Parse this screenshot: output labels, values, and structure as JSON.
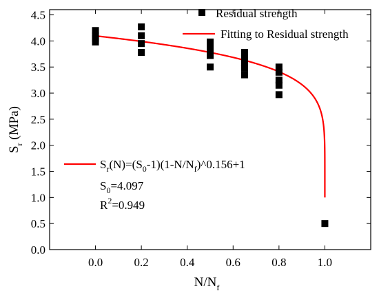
{
  "chart_data": {
    "type": "scatter",
    "xlabel": {
      "main": "N/N",
      "sub": "f"
    },
    "ylabel": {
      "main": "S",
      "sub": "r",
      "rest": " (MPa)"
    },
    "xlim": [
      -0.2,
      1.2
    ],
    "ylim": [
      0.0,
      4.6
    ],
    "xticks": [
      "0.0",
      "0.2",
      "0.4",
      "0.6",
      "0.8",
      "1.0"
    ],
    "yticks": [
      "0.0",
      "0.5",
      "1.0",
      "1.5",
      "2.0",
      "2.5",
      "3.0",
      "3.5",
      "4.0",
      "4.5"
    ],
    "grid": false,
    "series": [
      {
        "name": "Residual strength",
        "kind": "scatter",
        "color": "#000000",
        "marker": "square",
        "points": [
          [
            0.0,
            4.2
          ],
          [
            0.0,
            4.1
          ],
          [
            0.0,
            4.05
          ],
          [
            0.0,
            3.98
          ],
          [
            0.2,
            4.27
          ],
          [
            0.2,
            4.1
          ],
          [
            0.2,
            3.95
          ],
          [
            0.2,
            3.78
          ],
          [
            0.5,
            3.98
          ],
          [
            0.5,
            3.88
          ],
          [
            0.5,
            3.78
          ],
          [
            0.5,
            3.72
          ],
          [
            0.5,
            3.5
          ],
          [
            0.65,
            3.78
          ],
          [
            0.65,
            3.67
          ],
          [
            0.65,
            3.58
          ],
          [
            0.65,
            3.48
          ],
          [
            0.65,
            3.35
          ],
          [
            0.8,
            3.5
          ],
          [
            0.8,
            3.4
          ],
          [
            0.8,
            3.25
          ],
          [
            0.8,
            3.15
          ],
          [
            0.8,
            2.97
          ],
          [
            1.0,
            0.5
          ]
        ]
      },
      {
        "name": "Fitting to Residual strength",
        "kind": "line",
        "color": "#ff0000",
        "S0": 4.097,
        "exponent": 0.156
      }
    ],
    "legend_position": "top-right",
    "annotation": {
      "formula": {
        "p1": "S",
        "p1_sub": "r",
        "p2": "(N)=(S",
        "p2_sub": "0",
        "p3": "-1)(1-N/N",
        "p3_sub": "f",
        "p4": ")^0.156+1"
      },
      "s0": {
        "main": "S",
        "sub": "0",
        "rest": "=4.097"
      },
      "r2": {
        "main": "R",
        "sup": "2",
        "rest": "=0.949"
      }
    }
  }
}
